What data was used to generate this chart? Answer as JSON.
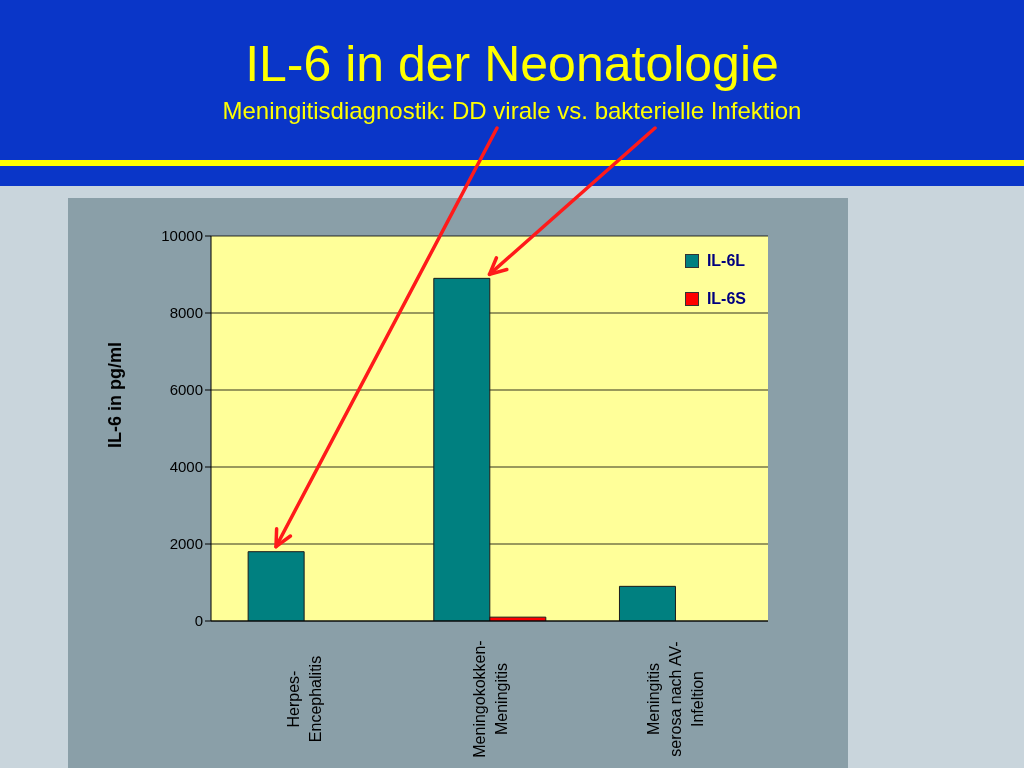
{
  "chart_data": {
    "type": "bar",
    "title": "IL-6 in der Neonatologie",
    "subtitle": "Meningitisdiagnostik: DD virale vs. bakterielle Infektion",
    "ylabel": "IL-6 in pg/ml",
    "categories": [
      "Herpes-Encephalitis",
      "Meningokokken-Meningitis",
      "Meningitis serosa nach AV-Infeltion"
    ],
    "series": [
      {
        "name": "IL-6L",
        "color": "#008080",
        "values": [
          1800,
          8900,
          900
        ]
      },
      {
        "name": "IL-6S",
        "color": "#ff0000",
        "values": [
          0,
          100,
          0
        ]
      }
    ],
    "ylim": [
      0,
      10000
    ],
    "yticks": [
      0,
      2000,
      4000,
      6000,
      8000,
      10000
    ],
    "grid": "y",
    "legend": "top right"
  }
}
